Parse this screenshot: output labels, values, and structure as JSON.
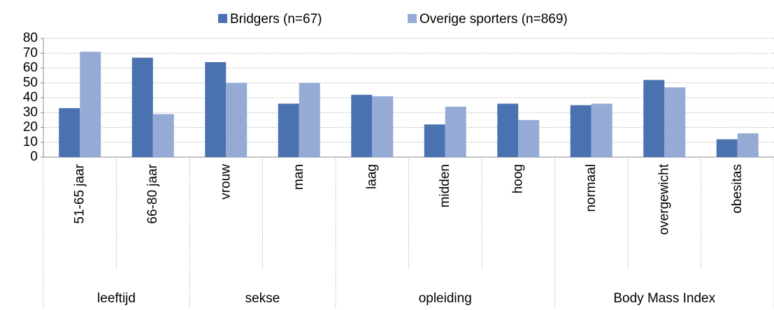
{
  "chart_data": {
    "type": "bar",
    "groups": [
      {
        "name": "leeftijd",
        "categories": [
          "51-65 jaar",
          "66-80 jaar"
        ]
      },
      {
        "name": "sekse",
        "categories": [
          "vrouw",
          "man"
        ]
      },
      {
        "name": "opleiding",
        "categories": [
          "laag",
          "midden",
          "hoog"
        ]
      },
      {
        "name": "Body Mass Index",
        "categories": [
          "normaal",
          "overgewicht",
          "obesitas"
        ]
      }
    ],
    "series": [
      {
        "name": "Bridgers (n=67)",
        "color": "#4a72b0",
        "values": [
          33,
          67,
          64,
          36,
          42,
          22,
          36,
          35,
          52,
          12
        ]
      },
      {
        "name": "Overige sporters (n=869)",
        "color": "#95abd6",
        "values": [
          71,
          29,
          50,
          50,
          41,
          34,
          25,
          36,
          47,
          16
        ]
      }
    ],
    "ylim": [
      0,
      80
    ],
    "yticks": [
      0,
      10,
      20,
      30,
      40,
      50,
      60,
      70,
      80
    ],
    "grid": true,
    "legend": "top"
  }
}
